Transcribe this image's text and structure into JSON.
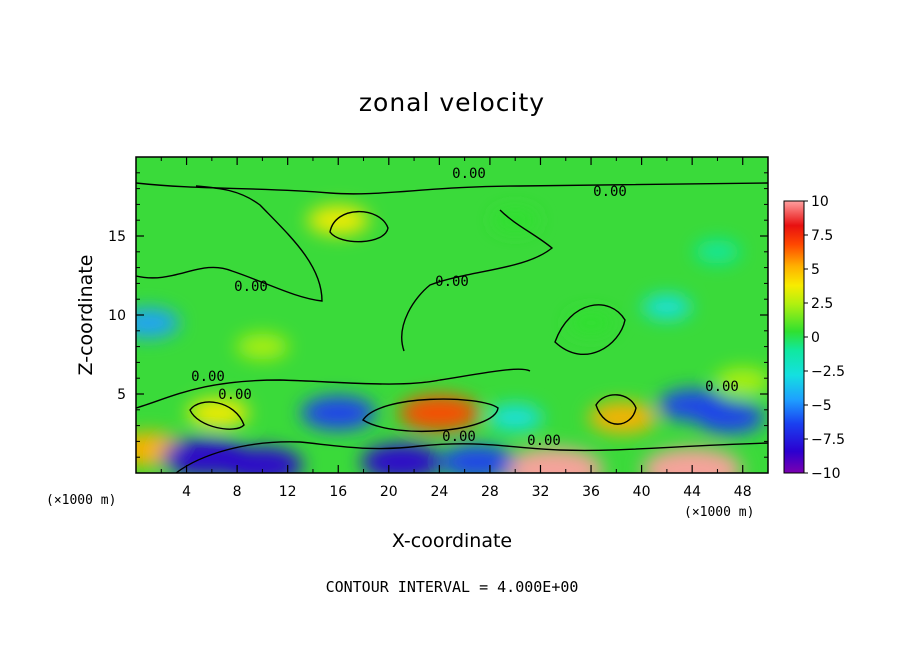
{
  "chart_data": {
    "type": "heatmap",
    "title": "zonal velocity",
    "xlabel": "X-coordinate",
    "ylabel": "Z-coordinate",
    "x_unit": "(×1000 m)",
    "y_unit": "(×1000 m)",
    "xlim": [
      0,
      50
    ],
    "ylim": [
      0,
      20
    ],
    "x_ticks": [
      "4",
      "8",
      "12",
      "16",
      "20",
      "24",
      "28",
      "32",
      "36",
      "40",
      "44",
      "48"
    ],
    "y_ticks": [
      "5",
      "10",
      "15"
    ],
    "colorbar": {
      "min": -10,
      "max": 10,
      "ticks": [
        "10",
        "7.5",
        "5",
        "2.5",
        "0",
        "−2.5",
        "−5",
        "−7.5",
        "−10"
      ]
    },
    "contour_labels": [
      "0.00",
      "0.00",
      "0.00",
      "0.00",
      "0.00",
      "0.00",
      "0.00",
      "0.00",
      "0.00"
    ],
    "footer": "CONTOUR INTERVAL = 4.000E+00",
    "features": [
      {
        "x": 16,
        "z": 16,
        "value": 4
      },
      {
        "x": 24,
        "z": 3.8,
        "value": 7
      },
      {
        "x": 38.5,
        "z": 3.5,
        "value": 5
      },
      {
        "x": 6.5,
        "z": 3.8,
        "value": 4
      },
      {
        "x": 1,
        "z": 1.5,
        "value": 6
      },
      {
        "x": 33,
        "z": 0.2,
        "value": 10
      },
      {
        "x": 44,
        "z": 0.2,
        "value": 10
      },
      {
        "x": 5.5,
        "z": 1,
        "value": -8
      },
      {
        "x": 10,
        "z": 0.5,
        "value": -7
      },
      {
        "x": 16,
        "z": 3.8,
        "value": -6
      },
      {
        "x": 21,
        "z": 0.7,
        "value": -7
      },
      {
        "x": 27,
        "z": 0.7,
        "value": -6
      },
      {
        "x": 44,
        "z": 4.3,
        "value": -5
      },
      {
        "x": 47,
        "z": 3.5,
        "value": -5
      },
      {
        "x": 1,
        "z": 9.5,
        "value": -4
      },
      {
        "x": 30,
        "z": 3.5,
        "value": -3
      },
      {
        "x": 42,
        "z": 10.5,
        "value": -2
      },
      {
        "x": 46,
        "z": 14,
        "value": -1.5
      },
      {
        "x": 10,
        "z": 8,
        "value": 2.5
      },
      {
        "x": 30,
        "z": 16,
        "value": 1.5
      },
      {
        "x": 48,
        "z": 5.8,
        "value": 3
      },
      {
        "x": 36,
        "z": 9.5,
        "value": 1.8
      }
    ]
  }
}
